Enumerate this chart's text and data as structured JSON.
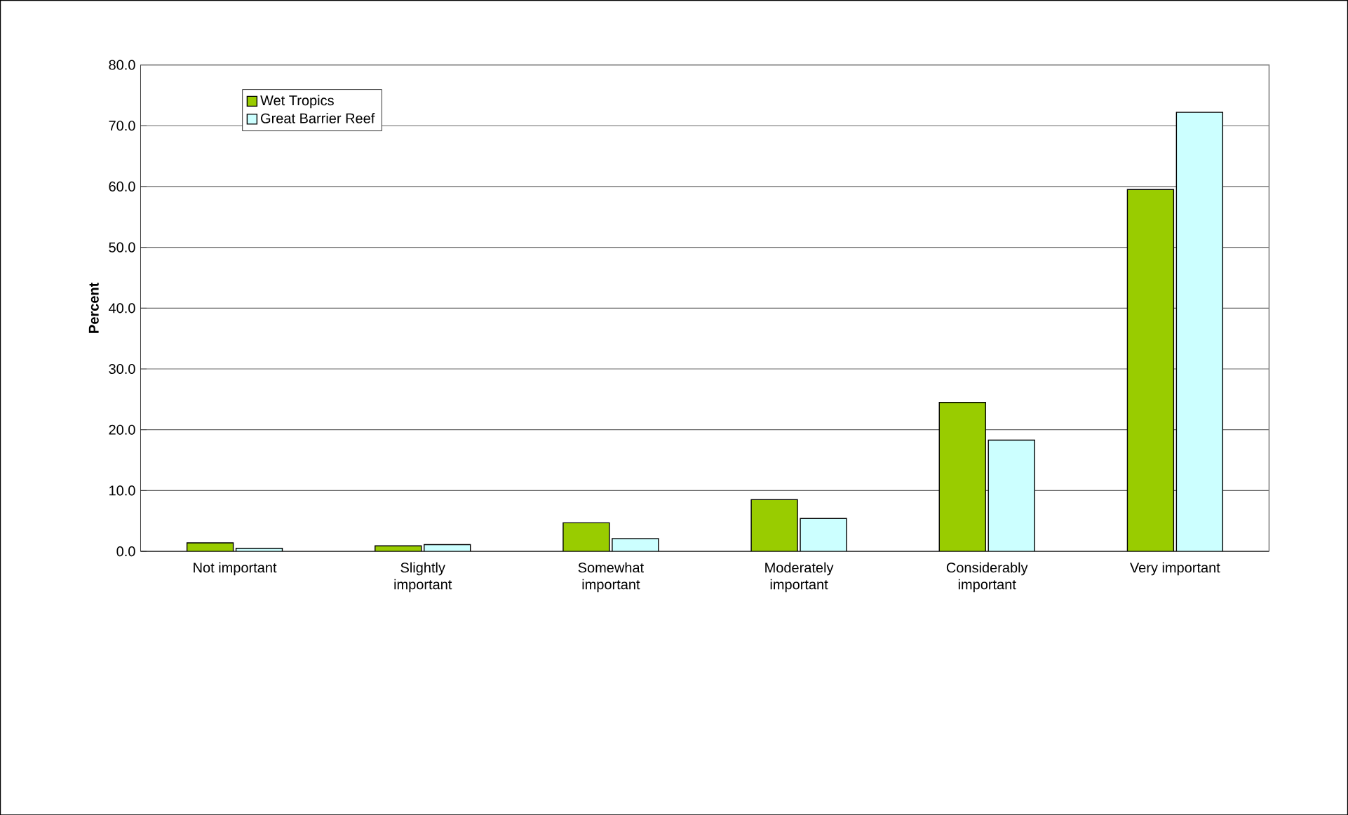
{
  "chart_data": {
    "type": "bar",
    "ylabel": "Percent",
    "categories": [
      "Not important",
      "Slightly\nimportant",
      "Somewhat\nimportant",
      "Moderately\nimportant",
      "Considerably\nimportant",
      "Very important"
    ],
    "series": [
      {
        "name": "Wet Tropics",
        "color": "#99cc00",
        "values": [
          1.4,
          0.9,
          4.7,
          8.5,
          24.5,
          59.5
        ]
      },
      {
        "name": "Great Barrier Reef",
        "color": "#ccffff",
        "values": [
          0.5,
          1.1,
          2.1,
          5.4,
          18.3,
          72.2
        ]
      }
    ],
    "ylim": [
      0,
      80
    ],
    "yticks": [
      {
        "value": 0,
        "label": "0.0"
      },
      {
        "value": 10,
        "label": "10.0"
      },
      {
        "value": 20,
        "label": "20.0"
      },
      {
        "value": 30,
        "label": "30.0"
      },
      {
        "value": 40,
        "label": "40.0"
      },
      {
        "value": 50,
        "label": "50.0"
      },
      {
        "value": 60,
        "label": "60.0"
      },
      {
        "value": 70,
        "label": "70.0"
      },
      {
        "value": 80,
        "label": "80.0"
      }
    ],
    "grid": "y",
    "legend": "top left"
  }
}
